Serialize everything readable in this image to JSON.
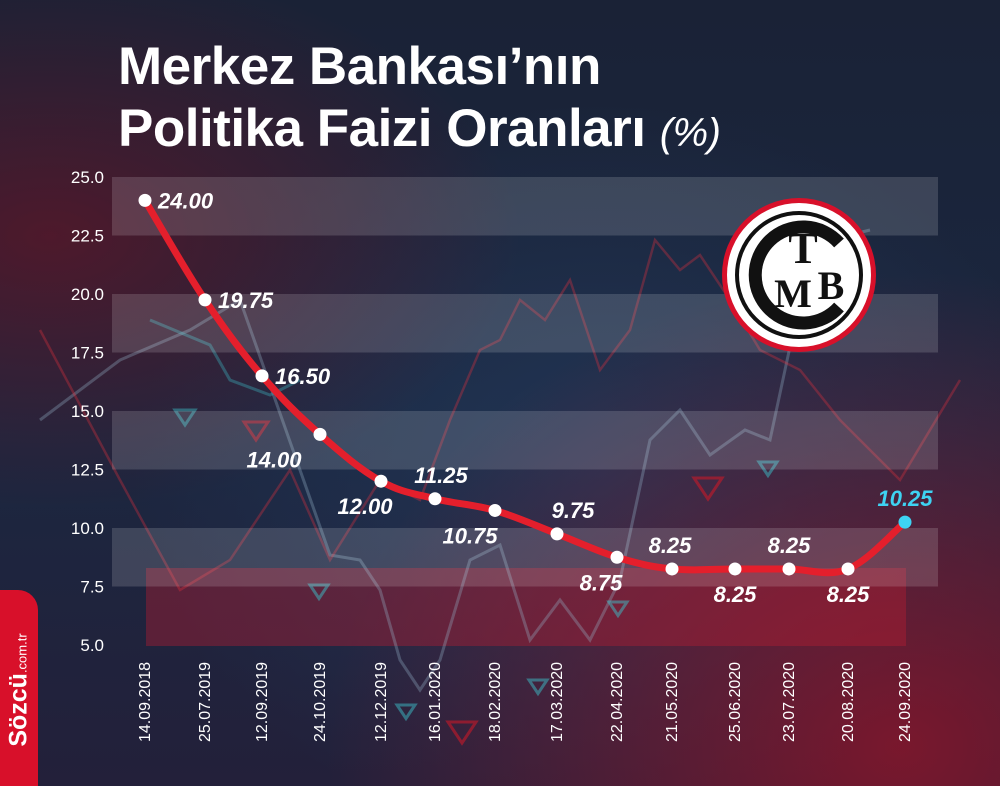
{
  "title": {
    "line1": "Merkez Bankası’nın",
    "line2": "Politika Faizi Oranları",
    "unit": "(%)"
  },
  "brand": {
    "name": "Sözcü",
    "domain": ".com.tr"
  },
  "logo": {
    "name": "TCMB",
    "letters": [
      "T",
      "C",
      "M",
      "B"
    ]
  },
  "colors": {
    "line": "#e41f2c",
    "marker": "#ffffff",
    "highlight": "#3ed3f2",
    "band": "#ffffff",
    "brand": "#d8102a"
  },
  "chart_data": {
    "type": "line",
    "categories": [
      "14.09.2018",
      "25.07.2019",
      "12.09.2019",
      "24.10.2019",
      "12.12.2019",
      "16.01.2020",
      "18.02.2020",
      "17.03.2020",
      "22.04.2020",
      "21.05.2020",
      "25.06.2020",
      "23.07.2020",
      "20.08.2020",
      "24.09.2020"
    ],
    "values": [
      24.0,
      19.75,
      16.5,
      14.0,
      12.0,
      11.25,
      10.75,
      9.75,
      8.75,
      8.25,
      8.25,
      8.25,
      8.25,
      10.25
    ],
    "labels": [
      "24.00",
      "19.75",
      "16.50",
      "14.00",
      "12.00",
      "11.25",
      "10.75",
      "9.75",
      "8.75",
      "8.25",
      "8.25",
      "8.25",
      "8.25",
      "10.25"
    ],
    "label_position": [
      "right",
      "right",
      "right",
      "below",
      "below",
      "above",
      "below",
      "above",
      "below",
      "above",
      "below",
      "above",
      "below",
      "above"
    ],
    "highlight_index": 13,
    "ylim": [
      5.0,
      25.0
    ],
    "yticks": [
      "5.0",
      "7.5",
      "10.0",
      "12.5",
      "15.0",
      "17.5",
      "20.0",
      "22.5",
      "25.0"
    ],
    "grid": "alternating horizontal bands",
    "legend": "none"
  }
}
